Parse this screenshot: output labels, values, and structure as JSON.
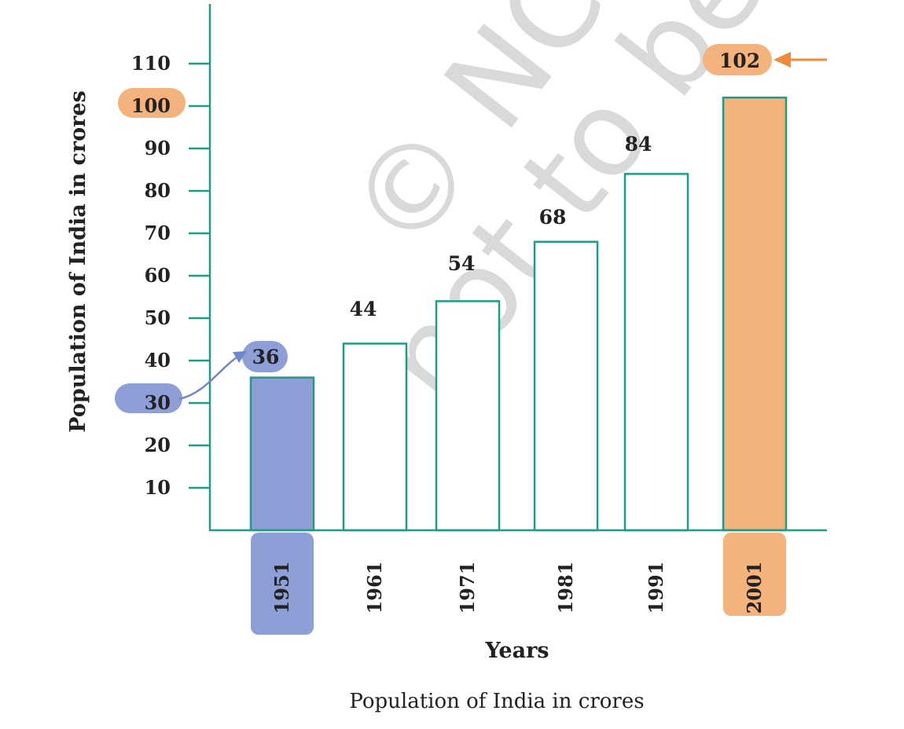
{
  "chart_data": {
    "type": "bar",
    "categories": [
      "1951",
      "1961",
      "1971",
      "1981",
      "1991",
      "2001"
    ],
    "values": [
      36,
      44,
      54,
      68,
      84,
      102
    ],
    "yticks": [
      10,
      20,
      30,
      40,
      50,
      60,
      70,
      80,
      90,
      100,
      110
    ],
    "ylim": [
      0,
      120
    ],
    "ylabel": "Population of India in crores",
    "xlabel": "Years",
    "caption": "Population of India in crores",
    "grid": false,
    "highlights": {
      "first": {
        "category": "1951",
        "axis_value": 30,
        "color": "#8d9fd6"
      },
      "last": {
        "category": "2001",
        "axis_value": 100,
        "color": "#f4b27c"
      }
    },
    "colors": {
      "axis": "#1f9c84",
      "bar_fill": "#ffffff",
      "text": "#222222"
    }
  },
  "watermark": {
    "lines": [
      "© NCERT",
      "not to be republished"
    ],
    "color": "#d9d9d9"
  }
}
